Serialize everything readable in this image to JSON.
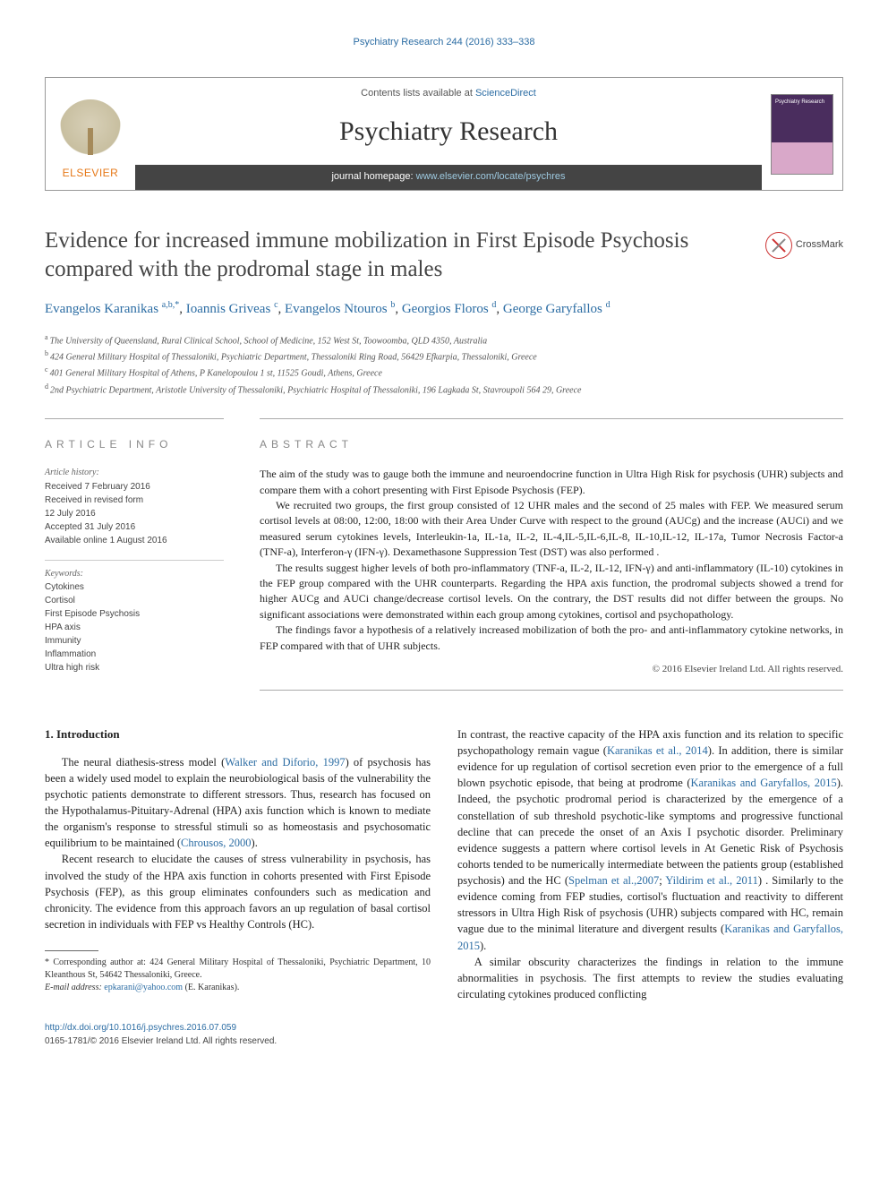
{
  "top_link": {
    "journal": "Psychiatry Research",
    "citation": "244 (2016) 333–338"
  },
  "header": {
    "contents_prefix": "Contents lists available at ",
    "contents_link": "ScienceDirect",
    "journal_name": "Psychiatry Research",
    "homepage_prefix": "journal homepage: ",
    "homepage_url": "www.elsevier.com/locate/psychres",
    "elsevier": "ELSEVIER",
    "thumb_label": "Psychiatry Research"
  },
  "crossmark": "CrossMark",
  "title": "Evidence for increased immune mobilization in First Episode Psychosis compared with the prodromal stage in males",
  "authors": [
    {
      "name": "Evangelos Karanikas",
      "sup": "a,b,*"
    },
    {
      "name": "Ioannis Griveas",
      "sup": "c"
    },
    {
      "name": "Evangelos Ntouros",
      "sup": "b"
    },
    {
      "name": "Georgios Floros",
      "sup": "d"
    },
    {
      "name": "George Garyfallos",
      "sup": "d"
    }
  ],
  "affiliations": [
    {
      "sup": "a",
      "text": "The University of Queensland, Rural Clinical School, School of Medicine, 152 West St, Toowoomba, QLD 4350, Australia"
    },
    {
      "sup": "b",
      "text": "424 General Military Hospital of Thessaloniki, Psychiatric Department, Thessaloniki Ring Road, 56429 Efkarpia, Thessaloniki, Greece"
    },
    {
      "sup": "c",
      "text": "401 General Military Hospital of Athens, P Kanelopoulou 1 st, 11525 Goudi, Athens, Greece"
    },
    {
      "sup": "d",
      "text": "2nd Psychiatric Department, Aristotle University of Thessaloniki, Psychiatric Hospital of Thessaloniki, 196 Lagkada St, Stavroupoli 564 29, Greece"
    }
  ],
  "article_info_heading": "ARTICLE INFO",
  "abstract_heading": "ABSTRACT",
  "history": {
    "label": "Article history:",
    "lines": [
      "Received 7 February 2016",
      "Received in revised form",
      "12 July 2016",
      "Accepted 31 July 2016",
      "Available online 1 August 2016"
    ]
  },
  "keywords": {
    "label": "Keywords:",
    "items": [
      "Cytokines",
      "Cortisol",
      "First Episode Psychosis",
      "HPA axis",
      "Immunity",
      "Inflammation",
      "Ultra high risk"
    ]
  },
  "abstract": {
    "p1": "The aim of the study was to gauge both the immune and neuroendocrine function in Ultra High Risk for psychosis (UHR) subjects and compare them with a cohort presenting with First Episode Psychosis (FEP).",
    "p2": "We recruited two groups, the first group consisted of 12 UHR males and the second of 25 males with FEP. We measured serum cortisol levels at 08:00, 12:00, 18:00 with their Area Under Curve with respect to the ground (AUCg) and the increase (AUCi) and we measured serum cytokines levels, Interleukin-1a, IL-1a, IL-2, IL-4,IL-5,IL-6,IL-8, IL-10,IL-12, IL-17a, Tumor Necrosis Factor-a (TNF-a), Interferon-γ (IFN-γ). Dexamethasone Suppression Test (DST) was also performed .",
    "p3": "The results suggest higher levels of both pro-inflammatory (TNF-a, IL-2, IL-12, IFN-γ) and anti-inflammatory (IL-10) cytokines in the FEP group compared with the UHR counterparts. Regarding the HPA axis function, the prodromal subjects showed a trend for higher AUCg and AUCi change/decrease cortisol levels. On the contrary, the DST results did not differ between the groups. No significant associations were demonstrated within each group among cytokines, cortisol and psychopathology.",
    "p4": "The findings favor a hypothesis of a relatively increased mobilization of both the pro- and anti-inflammatory cytokine networks, in FEP compared with that of UHR subjects.",
    "copyright": "© 2016 Elsevier Ireland Ltd. All rights reserved."
  },
  "section1_heading": "1.  Introduction",
  "body": {
    "p1a": "The neural diathesis-stress model (",
    "p1_link1": "Walker and Diforio, 1997",
    "p1b": ") of psychosis has been a widely used model to explain the neurobiological basis of the vulnerability the psychotic patients demonstrate to different stressors. Thus, research has focused on the Hypothalamus-Pituitary-Adrenal (HPA) axis function which is known to mediate the organism's response to stressful stimuli so as homeostasis and psychosomatic equilibrium to be maintained (",
    "p1_link2": "Chrousos, 2000",
    "p1c": ").",
    "p2": "Recent research to elucidate the causes of stress vulnerability in psychosis, has involved the study of the HPA axis function in cohorts presented with First Episode Psychosis (FEP), as this group eliminates confounders such as medication and chronicity. The evidence from this approach favors an up regulation of basal cortisol secretion in individuals with FEP vs Healthy Controls (HC).",
    "p3a": "In contrast, the reactive capacity of the HPA axis function and its relation to specific psychopathology remain vague (",
    "p3_link1": "Karanikas et al., 2014",
    "p3b": "). In addition, there is similar evidence for up regulation of cortisol secretion even prior to the emergence of a full blown psychotic episode, that being at prodrome (",
    "p3_link2": "Karanikas and Garyfallos, 2015",
    "p3c": "). Indeed, the psychotic prodromal period is characterized by the emergence of a constellation of sub threshold psychotic-like symptoms and progressive functional decline that can precede the onset of an Axis I psychotic disorder. Preliminary evidence suggests a pattern where cortisol levels in At Genetic Risk of Psychosis cohorts tended to be numerically intermediate between the patients group (established psychosis) and the HC (",
    "p3_link3": "Spelman et al.,2007",
    "p3d": "; ",
    "p3_link4": "Yildirim et al., 2011",
    "p3e": ") . Similarly to the evidence coming from FEP studies, cortisol's fluctuation and reactivity to different stressors in Ultra High Risk of psychosis (UHR) subjects compared with HC, remain vague due to the minimal literature and divergent results (",
    "p3_link5": "Karanikas and Garyfallos, 2015",
    "p3f": ").",
    "p4": "A similar obscurity characterizes the findings in relation to the immune abnormalities in psychosis. The first attempts to review the studies evaluating circulating cytokines produced conflicting"
  },
  "footnote": {
    "corr": "* Corresponding author at: 424 General Military Hospital of Thessaloniki, Psychiatric Department, 10 Kleanthous St, 54642 Thessaloniki, Greece.",
    "email_label": "E-mail address: ",
    "email": "epkarani@yahoo.com",
    "email_name": " (E. Karanikas)."
  },
  "doi": {
    "url": "http://dx.doi.org/10.1016/j.psychres.2016.07.059",
    "issn_line": "0165-1781/© 2016 Elsevier Ireland Ltd. All rights reserved."
  },
  "colors": {
    "link": "#2b6ca3",
    "elsevier_orange": "#e67817",
    "rule": "#aaa"
  }
}
